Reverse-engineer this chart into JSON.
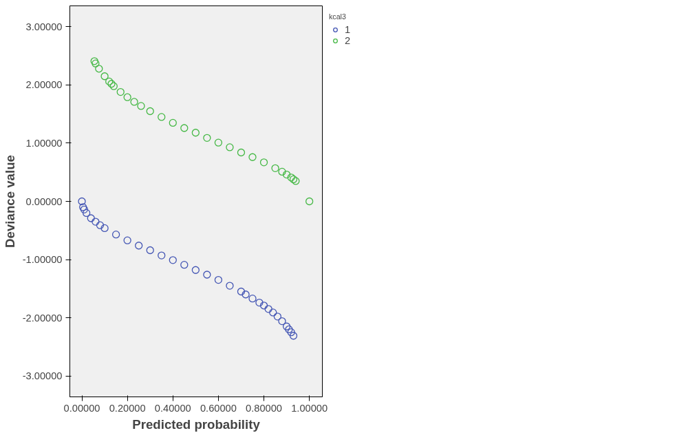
{
  "chart_data": {
    "type": "scatter",
    "xlabel": "Predicted probability",
    "ylabel": "Deviance value",
    "legend_title": "kcal3",
    "legend": "top right",
    "grid": false,
    "marker": "circle",
    "xlim": [
      -0.053,
      1.057
    ],
    "ylim": [
      -3.36,
      3.36
    ],
    "xticks": [
      {
        "value": 0,
        "label": "0.00000"
      },
      {
        "value": 0.2,
        "label": "0.20000"
      },
      {
        "value": 0.4,
        "label": "0.40000"
      },
      {
        "value": 0.6,
        "label": "0.60000"
      },
      {
        "value": 0.8,
        "label": "0.80000"
      },
      {
        "value": 1,
        "label": "1.00000"
      }
    ],
    "yticks": [
      {
        "value": -3,
        "label": "-3.00000"
      },
      {
        "value": -2,
        "label": "-2.00000"
      },
      {
        "value": -1,
        "label": "-1.00000"
      },
      {
        "value": 0,
        "label": "0.00000"
      },
      {
        "value": 1,
        "label": "1.00000"
      },
      {
        "value": 2,
        "label": "2.00000"
      },
      {
        "value": 3,
        "label": "3.00000"
      }
    ],
    "series": [
      {
        "name": "1",
        "color": "#4456b4",
        "x": [
          0,
          0.005,
          0.01,
          0.02,
          0.04,
          0.06,
          0.08,
          0.1,
          0.15,
          0.2,
          0.25,
          0.3,
          0.35,
          0.4,
          0.45,
          0.5,
          0.55,
          0.6,
          0.65,
          0.7,
          0.72,
          0.75,
          0.78,
          0.8,
          0.82,
          0.84,
          0.86,
          0.88,
          0.9,
          0.91,
          0.92,
          0.93
        ],
        "values": [
          0,
          -0.1,
          -0.14,
          -0.2,
          -0.29,
          -0.35,
          -0.41,
          -0.46,
          -0.57,
          -0.67,
          -0.76,
          -0.84,
          -0.93,
          -1.01,
          -1.09,
          -1.18,
          -1.26,
          -1.35,
          -1.45,
          -1.55,
          -1.6,
          -1.67,
          -1.74,
          -1.79,
          -1.85,
          -1.91,
          -1.98,
          -2.06,
          -2.15,
          -2.2,
          -2.25,
          -2.31
        ]
      },
      {
        "name": "2",
        "color": "#45b845",
        "x": [
          0.055,
          0.06,
          0.075,
          0.1,
          0.12,
          0.13,
          0.14,
          0.17,
          0.2,
          0.23,
          0.26,
          0.3,
          0.35,
          0.4,
          0.45,
          0.5,
          0.55,
          0.6,
          0.65,
          0.7,
          0.75,
          0.8,
          0.85,
          0.88,
          0.9,
          0.92,
          0.93,
          0.94,
          1.0
        ],
        "values": [
          2.41,
          2.37,
          2.28,
          2.15,
          2.06,
          2.02,
          1.98,
          1.88,
          1.79,
          1.71,
          1.64,
          1.55,
          1.45,
          1.35,
          1.26,
          1.18,
          1.09,
          1.01,
          0.93,
          0.84,
          0.76,
          0.67,
          0.57,
          0.51,
          0.46,
          0.41,
          0.38,
          0.35,
          0.0
        ]
      }
    ]
  }
}
